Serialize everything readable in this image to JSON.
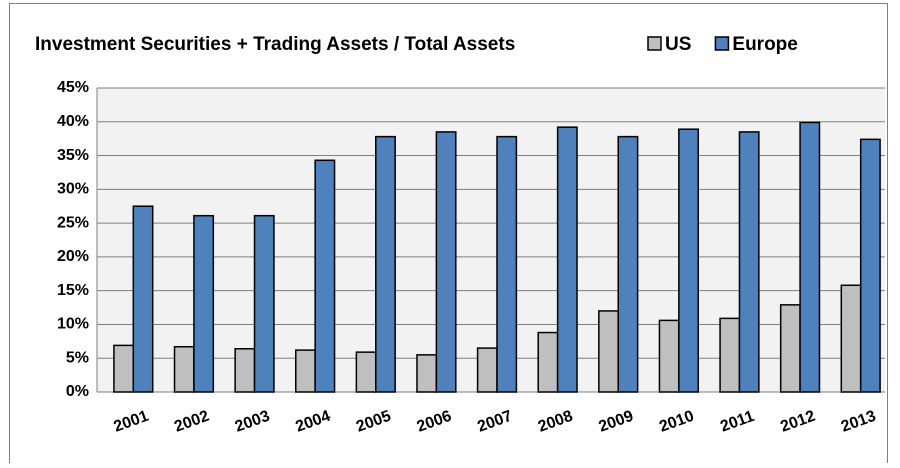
{
  "chart_data": {
    "type": "bar",
    "title": "Investment Securities + Trading Assets / Total Assets",
    "categories": [
      "2001",
      "2002",
      "2003",
      "2004",
      "2005",
      "2006",
      "2007",
      "2008",
      "2009",
      "2010",
      "2011",
      "2012",
      "2013"
    ],
    "series": [
      {
        "name": "US",
        "color": "#bfbfbf",
        "values": [
          6.9,
          6.7,
          6.4,
          6.2,
          5.9,
          5.5,
          6.5,
          8.8,
          12.0,
          10.6,
          10.9,
          12.9,
          15.8
        ]
      },
      {
        "name": "Europe",
        "color": "#4f81bd",
        "values": [
          27.5,
          26.1,
          26.1,
          34.3,
          37.8,
          38.5,
          37.8,
          39.2,
          37.8,
          38.9,
          38.5,
          39.9,
          37.4
        ]
      }
    ],
    "ylim": [
      0,
      45
    ],
    "yticks": [
      {
        "value": 0,
        "label": "0%"
      },
      {
        "value": 5,
        "label": "5%"
      },
      {
        "value": 10,
        "label": "10%"
      },
      {
        "value": 15,
        "label": "15%"
      },
      {
        "value": 20,
        "label": "20%"
      },
      {
        "value": 25,
        "label": "25%"
      },
      {
        "value": 30,
        "label": "30%"
      },
      {
        "value": 35,
        "label": "35%"
      },
      {
        "value": 40,
        "label": "40%"
      },
      {
        "value": 45,
        "label": "45%"
      }
    ],
    "grid": true
  }
}
